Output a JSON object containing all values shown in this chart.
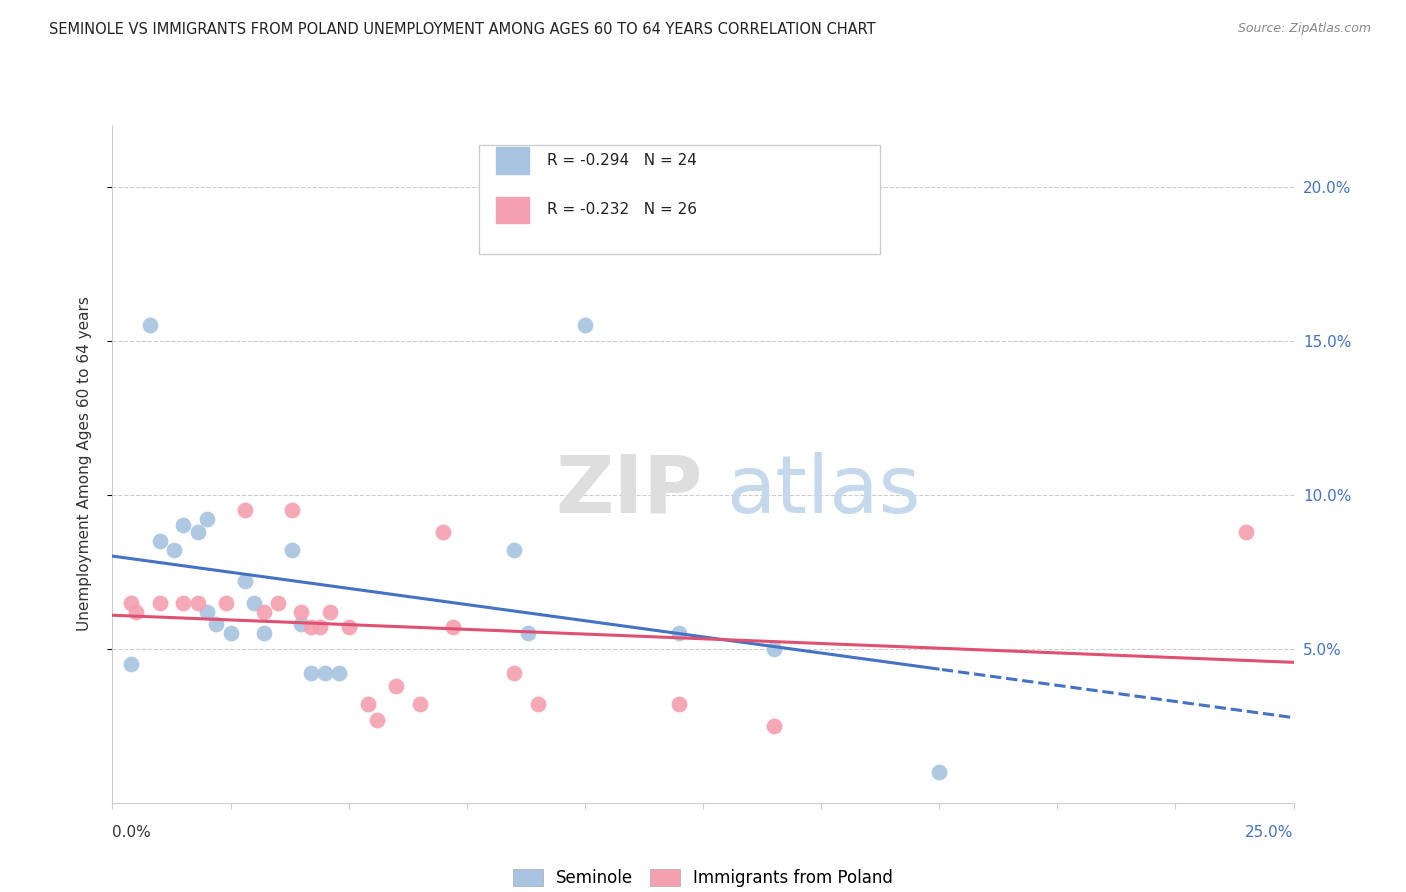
{
  "title": "SEMINOLE VS IMMIGRANTS FROM POLAND UNEMPLOYMENT AMONG AGES 60 TO 64 YEARS CORRELATION CHART",
  "source": "Source: ZipAtlas.com",
  "ylabel": "Unemployment Among Ages 60 to 64 years",
  "xlim": [
    0.0,
    0.25
  ],
  "ylim": [
    0.0,
    0.22
  ],
  "background_color": "#ffffff",
  "seminole_color": "#a8c4e0",
  "poland_color": "#f4a0b0",
  "trendline_blue": "#4472c4",
  "trendline_pink": "#e05070",
  "legend_R_blue": "-0.294",
  "legend_N_blue": "24",
  "legend_R_pink": "-0.232",
  "legend_N_pink": "26",
  "seminole_x": [
    0.004,
    0.008,
    0.01,
    0.013,
    0.015,
    0.018,
    0.02,
    0.02,
    0.022,
    0.025,
    0.028,
    0.03,
    0.032,
    0.038,
    0.04,
    0.042,
    0.045,
    0.048,
    0.085,
    0.088,
    0.1,
    0.12,
    0.14,
    0.175
  ],
  "seminole_y": [
    0.045,
    0.155,
    0.085,
    0.082,
    0.09,
    0.088,
    0.092,
    0.062,
    0.058,
    0.055,
    0.072,
    0.065,
    0.055,
    0.082,
    0.058,
    0.042,
    0.042,
    0.042,
    0.082,
    0.055,
    0.155,
    0.055,
    0.05,
    0.01
  ],
  "poland_x": [
    0.004,
    0.005,
    0.01,
    0.015,
    0.018,
    0.024,
    0.028,
    0.032,
    0.035,
    0.038,
    0.04,
    0.042,
    0.044,
    0.046,
    0.05,
    0.054,
    0.056,
    0.06,
    0.065,
    0.07,
    0.072,
    0.085,
    0.09,
    0.12,
    0.14,
    0.24
  ],
  "poland_y": [
    0.065,
    0.062,
    0.065,
    0.065,
    0.065,
    0.065,
    0.095,
    0.062,
    0.065,
    0.095,
    0.062,
    0.057,
    0.057,
    0.062,
    0.057,
    0.032,
    0.027,
    0.038,
    0.032,
    0.088,
    0.057,
    0.042,
    0.032,
    0.032,
    0.025,
    0.088
  ],
  "grid_color": "#cccccc",
  "tick_color_blue": "#4472c4",
  "axis_color": "#cccccc"
}
